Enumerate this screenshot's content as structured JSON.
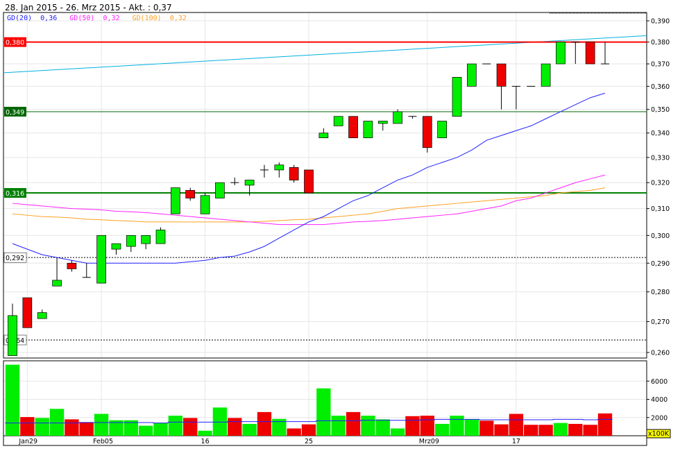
{
  "header": {
    "title": "28. Jan 2015 - 26. Mrz 2015 - Akt. : 0,37"
  },
  "legend": [
    {
      "label": "GD(20)",
      "value": "0,36",
      "color": "#2020ff"
    },
    {
      "label": "GD(50)",
      "value": "0,32",
      "color": "#ff20ff"
    },
    {
      "label": "GD(100)",
      "value": "0,32",
      "color": "#ffa020"
    }
  ],
  "chart_data": {
    "type": "candlestick",
    "scale": "log",
    "ylim": [
      0.26,
      0.39
    ],
    "y_ticks": [
      "0,390",
      "0,380",
      "0,370",
      "0,360",
      "0,350",
      "0,340",
      "0,330",
      "0,320",
      "0,310",
      "0,300",
      "0,290",
      "0,280",
      "0,270",
      "0,260"
    ],
    "y_tick_values": [
      0.39,
      0.38,
      0.37,
      0.36,
      0.35,
      0.34,
      0.33,
      0.32,
      0.31,
      0.3,
      0.29,
      0.28,
      0.27,
      0.26
    ],
    "x_ticks": [
      {
        "label": "Jan29",
        "index": 1
      },
      {
        "label": "Feb05",
        "index": 6
      },
      {
        "label": "16",
        "index": 13
      },
      {
        "label": "25",
        "index": 20
      },
      {
        "label": "Mrz09",
        "index": 28
      },
      {
        "label": "17",
        "index": 34
      }
    ],
    "ohlc": [
      [
        0.259,
        0.276,
        0.259,
        0.272
      ],
      [
        0.278,
        0.278,
        0.268,
        0.268
      ],
      [
        0.271,
        0.274,
        0.271,
        0.273
      ],
      [
        0.282,
        0.292,
        0.282,
        0.284
      ],
      [
        0.29,
        0.291,
        0.287,
        0.288
      ],
      [
        0.285,
        0.29,
        0.285,
        0.285
      ],
      [
        0.283,
        0.3,
        0.283,
        0.3
      ],
      [
        0.295,
        0.297,
        0.293,
        0.297
      ],
      [
        0.296,
        0.3,
        0.294,
        0.3
      ],
      [
        0.297,
        0.3,
        0.295,
        0.3
      ],
      [
        0.297,
        0.303,
        0.297,
        0.302
      ],
      [
        0.308,
        0.318,
        0.308,
        0.318
      ],
      [
        0.317,
        0.318,
        0.313,
        0.314
      ],
      [
        0.308,
        0.316,
        0.308,
        0.315
      ],
      [
        0.314,
        0.32,
        0.314,
        0.32
      ],
      [
        0.32,
        0.322,
        0.319,
        0.32
      ],
      [
        0.319,
        0.321,
        0.315,
        0.321
      ],
      [
        0.325,
        0.327,
        0.322,
        0.325
      ],
      [
        0.325,
        0.328,
        0.322,
        0.327
      ],
      [
        0.326,
        0.327,
        0.32,
        0.321
      ],
      [
        0.325,
        0.325,
        0.316,
        0.316
      ],
      [
        0.338,
        0.342,
        0.338,
        0.34
      ],
      [
        0.343,
        0.347,
        0.343,
        0.347
      ],
      [
        0.347,
        0.347,
        0.338,
        0.338
      ],
      [
        0.338,
        0.345,
        0.338,
        0.345
      ],
      [
        0.344,
        0.345,
        0.341,
        0.345
      ],
      [
        0.344,
        0.35,
        0.344,
        0.349
      ],
      [
        0.347,
        0.347,
        0.346,
        0.347
      ],
      [
        0.347,
        0.347,
        0.332,
        0.334
      ],
      [
        0.338,
        0.345,
        0.338,
        0.345
      ],
      [
        0.347,
        0.364,
        0.347,
        0.364
      ],
      [
        0.36,
        0.37,
        0.36,
        0.37
      ],
      [
        0.37,
        0.37,
        0.37,
        0.37
      ],
      [
        0.37,
        0.37,
        0.35,
        0.36
      ],
      [
        0.36,
        0.36,
        0.35,
        0.36
      ],
      [
        0.36,
        0.36,
        0.36,
        0.36
      ],
      [
        0.36,
        0.37,
        0.36,
        0.37
      ],
      [
        0.37,
        0.38,
        0.37,
        0.38
      ],
      [
        0.38,
        0.38,
        0.37,
        0.38
      ],
      [
        0.38,
        0.38,
        0.37,
        0.37
      ],
      [
        0.37,
        0.38,
        0.37,
        0.37
      ]
    ],
    "gd20": [
      0.297,
      0.295,
      0.293,
      0.292,
      0.291,
      0.29,
      0.29,
      0.29,
      0.29,
      0.29,
      0.29,
      0.29,
      0.2905,
      0.291,
      0.292,
      0.2925,
      0.294,
      0.296,
      0.299,
      0.302,
      0.305,
      0.307,
      0.31,
      0.313,
      0.315,
      0.318,
      0.321,
      0.323,
      0.326,
      0.328,
      0.33,
      0.333,
      0.337,
      0.339,
      0.341,
      0.343,
      0.346,
      0.349,
      0.352,
      0.355,
      0.357
    ],
    "gd50": [
      0.312,
      0.3115,
      0.311,
      0.3105,
      0.31,
      0.3098,
      0.3095,
      0.309,
      0.3088,
      0.3085,
      0.308,
      0.3075,
      0.307,
      0.3065,
      0.306,
      0.3055,
      0.305,
      0.3045,
      0.304,
      0.304,
      0.304,
      0.304,
      0.3045,
      0.305,
      0.3052,
      0.3055,
      0.306,
      0.3065,
      0.307,
      0.3075,
      0.308,
      0.309,
      0.31,
      0.311,
      0.313,
      0.314,
      0.316,
      0.318,
      0.32,
      0.3215,
      0.323
    ],
    "gd100": [
      0.308,
      0.3075,
      0.307,
      0.3068,
      0.3065,
      0.306,
      0.3058,
      0.3055,
      0.3053,
      0.305,
      0.305,
      0.305,
      0.305,
      0.305,
      0.305,
      0.305,
      0.305,
      0.3052,
      0.3055,
      0.3058,
      0.306,
      0.3065,
      0.307,
      0.3075,
      0.308,
      0.309,
      0.31,
      0.3105,
      0.311,
      0.3115,
      0.312,
      0.3125,
      0.313,
      0.3135,
      0.314,
      0.3145,
      0.315,
      0.316,
      0.3165,
      0.317,
      0.318
    ],
    "trendline": [
      0.366,
      0.383
    ],
    "hlines": [
      {
        "value": 0.38,
        "label": "0,380",
        "color": "#ff0000",
        "style": "solid"
      },
      {
        "value": 0.349,
        "label": "0,349",
        "color": "#006600",
        "style": "thin"
      },
      {
        "value": 0.316,
        "label": "0,316",
        "color": "#008000",
        "style": "solid"
      },
      {
        "value": 0.292,
        "label": "0,292",
        "color": "#000000",
        "style": "dashed"
      },
      {
        "value": 0.264,
        "label": "0,264",
        "color": "#000000",
        "style": "dashed"
      }
    ],
    "volume": {
      "unit": "x100K",
      "ylim": [
        0,
        8000
      ],
      "ticks": [
        "2000",
        "4000",
        "6000"
      ],
      "tick_values": [
        2000,
        4000,
        6000
      ],
      "values": [
        7800,
        2050,
        1950,
        2950,
        1800,
        1500,
        2400,
        1700,
        1700,
        1100,
        1400,
        2200,
        1950,
        550,
        3100,
        1950,
        1300,
        2600,
        1850,
        800,
        1250,
        5200,
        2200,
        2600,
        2200,
        1800,
        800,
        2150,
        2200,
        1300,
        2200,
        1800,
        1650,
        1250,
        2400,
        1200,
        1200,
        1400,
        1300,
        1200,
        2450
      ],
      "up": [
        1,
        0,
        1,
        1,
        0,
        0,
        1,
        1,
        1,
        1,
        1,
        1,
        0,
        1,
        1,
        0,
        1,
        0,
        1,
        0,
        0,
        1,
        1,
        0,
        1,
        1,
        1,
        0,
        0,
        1,
        1,
        1,
        0,
        0,
        0,
        0,
        0,
        1,
        0,
        0,
        0
      ],
      "average": [
        1400,
        1400,
        1400,
        1400,
        1400,
        1450,
        1450,
        1450,
        1450,
        1450,
        1400,
        1500,
        1500,
        1500,
        1500,
        1550,
        1550,
        1550,
        1550,
        1550,
        1550,
        1650,
        1650,
        1650,
        1700,
        1700,
        1700,
        1700,
        1750,
        1800,
        1800,
        1800,
        1750,
        1750,
        1750,
        1750,
        1750,
        1800,
        1800,
        1750,
        1800
      ]
    },
    "colors": {
      "up": "#00ee00",
      "down": "#ee0000",
      "trend": "#00b0e0"
    }
  }
}
